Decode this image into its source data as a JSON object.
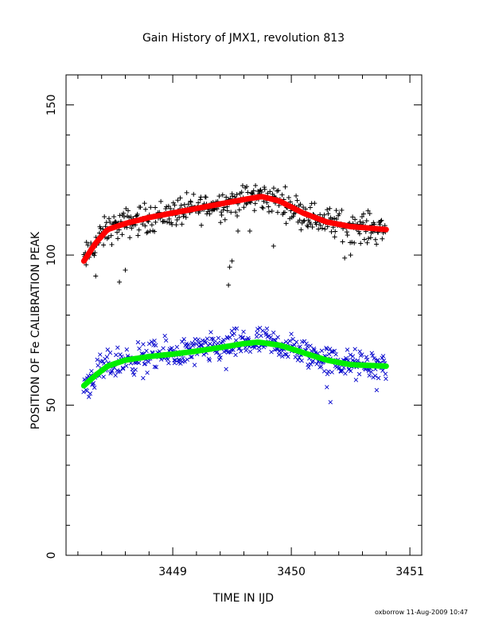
{
  "chart_data": {
    "type": "scatter",
    "title": "Gain History of JMX1, revolution 813",
    "xlabel": "TIME IN IJD",
    "ylabel": "POSITION OF Fe CALIBRATION PEAK",
    "xlim": [
      3448.1,
      3451.1
    ],
    "ylim": [
      0,
      160
    ],
    "x_ticks": [
      3449,
      3450,
      3451
    ],
    "y_ticks": [
      0,
      50,
      100,
      150
    ],
    "footer": "oxborrow 11-Aug-2009 10:47",
    "upper_fit": [
      [
        3448.25,
        98
      ],
      [
        3448.35,
        104
      ],
      [
        3448.45,
        108.5
      ],
      [
        3448.6,
        110.5
      ],
      [
        3448.8,
        112.5
      ],
      [
        3449.0,
        114
      ],
      [
        3449.2,
        115.5
      ],
      [
        3449.4,
        117
      ],
      [
        3449.6,
        118.5
      ],
      [
        3449.75,
        119.5
      ],
      [
        3449.9,
        118
      ],
      [
        3450.1,
        114
      ],
      [
        3450.3,
        111
      ],
      [
        3450.5,
        109.5
      ],
      [
        3450.8,
        108.5
      ]
    ],
    "lower_fit": [
      [
        3448.25,
        56.5
      ],
      [
        3448.35,
        60
      ],
      [
        3448.45,
        63
      ],
      [
        3448.6,
        65
      ],
      [
        3448.8,
        66.2
      ],
      [
        3449.0,
        67
      ],
      [
        3449.2,
        68
      ],
      [
        3449.4,
        69.2
      ],
      [
        3449.6,
        70.5
      ],
      [
        3449.72,
        71
      ],
      [
        3449.9,
        70
      ],
      [
        3450.1,
        67.5
      ],
      [
        3450.3,
        65
      ],
      [
        3450.5,
        63.5
      ],
      [
        3450.8,
        63
      ]
    ],
    "upper_scatter": {
      "marker": "+",
      "color": "#000000",
      "scatter": 3.5,
      "outliers": [
        [
          3448.35,
          93
        ],
        [
          3448.55,
          91
        ],
        [
          3448.6,
          95
        ],
        [
          3449.47,
          90
        ],
        [
          3449.48,
          96
        ],
        [
          3449.5,
          98
        ],
        [
          3449.85,
          103
        ],
        [
          3450.45,
          99
        ],
        [
          3450.5,
          100
        ],
        [
          3449.55,
          108
        ],
        [
          3449.65,
          108
        ]
      ]
    },
    "lower_scatter": {
      "marker": "x",
      "color": "#0000cc",
      "scatter": 3.5,
      "outliers": [
        [
          3450.33,
          51
        ],
        [
          3450.3,
          56
        ],
        [
          3450.72,
          55
        ],
        [
          3449.45,
          62
        ],
        [
          3448.75,
          59
        ]
      ]
    },
    "upper_fit_color": "#ff0000",
    "lower_fit_color": "#00ee00"
  }
}
